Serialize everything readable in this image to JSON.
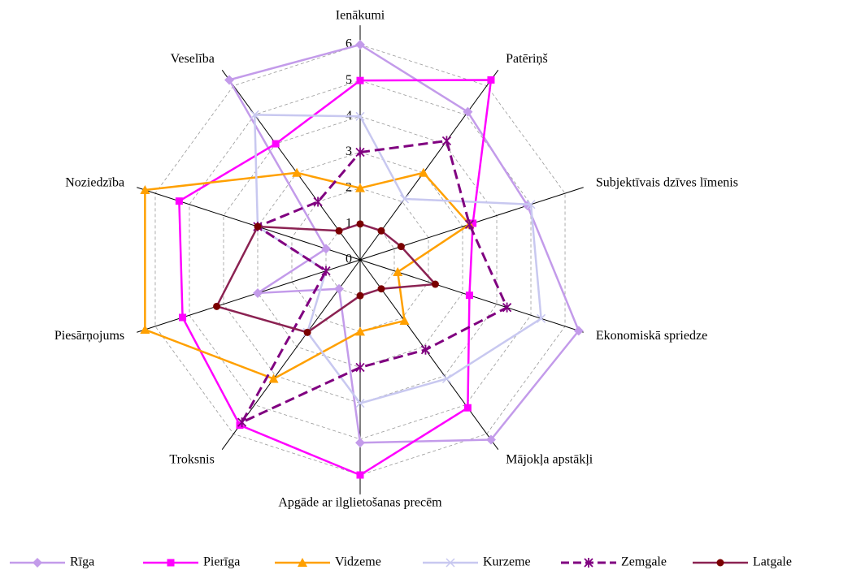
{
  "chart_data": {
    "type": "radar",
    "categories": [
      "Ienākumi",
      "Patēriņš",
      "Subjektīvais dzīves līmenis",
      "Ekonomiskā spriedze",
      "Mājokļa apstākļi",
      "Apgāde ar ilglietošanas precēm",
      "Troksnis",
      "Piesārņojums",
      "Noziedzība",
      "Veselība"
    ],
    "rlim": [
      0,
      6
    ],
    "rticks": [
      0,
      1,
      2,
      3,
      4,
      5,
      6
    ],
    "grid": true,
    "legend": "bottom",
    "series": [
      {
        "name": "Rīga",
        "color": "#c39bea",
        "marker": "diamond",
        "dashed": false,
        "values": [
          6,
          5.1,
          4.9,
          6.4,
          6.2,
          5.1,
          1.0,
          3.0,
          1.0,
          6.2
        ]
      },
      {
        "name": "Pierīga",
        "color": "#ff00ff",
        "marker": "square",
        "dashed": false,
        "values": [
          5,
          6.2,
          3.3,
          3.2,
          5.1,
          6,
          5.7,
          5.2,
          5.3,
          4.0
        ]
      },
      {
        "name": "Vidzeme",
        "color": "#ffa000",
        "marker": "triangle",
        "dashed": false,
        "values": [
          2,
          3.0,
          3.2,
          1.1,
          2.1,
          2,
          4.1,
          6.3,
          6.3,
          3.0
        ]
      },
      {
        "name": "Kurzeme",
        "color": "#c8c8f0",
        "marker": "x",
        "dashed": false,
        "values": [
          4,
          2.1,
          5.0,
          5.3,
          4.1,
          4.0,
          2.5,
          1.0,
          3.0,
          5.0
        ]
      },
      {
        "name": "Zemgale",
        "color": "#800080",
        "marker": "star",
        "dashed": true,
        "values": [
          3,
          4.1,
          3.2,
          4.3,
          3.1,
          3,
          5.6,
          1.0,
          3.0,
          2.0
        ]
      },
      {
        "name": "Latgale",
        "color": "#8b2252",
        "marker": "circle",
        "dashed": false,
        "values": [
          1,
          1.0,
          1.2,
          2.2,
          1.0,
          1.0,
          2.5,
          4.2,
          3.0,
          1.0
        ]
      }
    ]
  }
}
